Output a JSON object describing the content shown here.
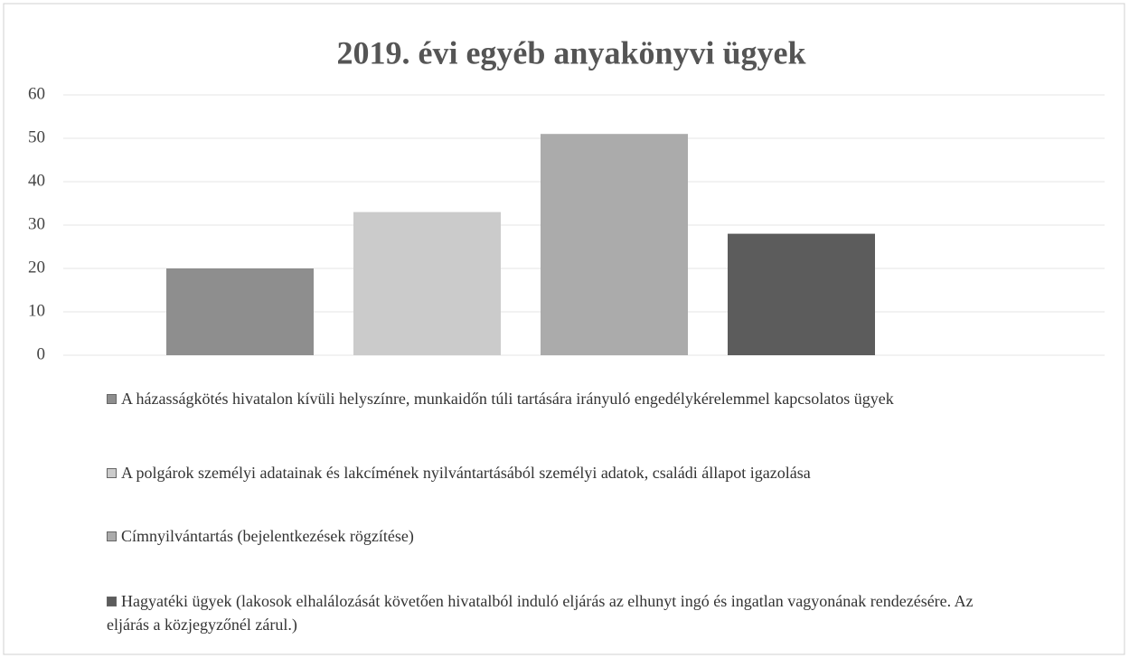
{
  "chart_data": {
    "type": "bar",
    "title": "2019. évi egyéb anyakönyvi ügyek",
    "categories": [
      null
    ],
    "series": [
      {
        "name": "A házasságkötés hivatalon kívüli helyszínre, munkaidőn túli tartására irányuló engedélykérelemmel kapcsolatos ügyek",
        "color": "#8e8e8e",
        "values": [
          20
        ]
      },
      {
        "name": "A polgárok személyi adatainak és lakcímének nyilvántartásából személyi adatok, családi állapot igazolása",
        "color": "#cbcbcb",
        "values": [
          33
        ]
      },
      {
        "name": "Címnyilvántartás (bejelentkezések rögzítése)",
        "color": "#ababab",
        "values": [
          51
        ]
      },
      {
        "name": "Hagyatéki ügyek (lakosok elhalálozását követően hivatalból induló eljárás az elhunyt ingó és ingatlan vagyonának rendezésére. Az eljárás a közjegyzőnél zárul.)",
        "color": "#5c5c5c",
        "values": [
          28
        ]
      }
    ],
    "ylim": [
      0,
      60
    ],
    "yticks": [
      0,
      10,
      20,
      30,
      40,
      50,
      60
    ],
    "grid": true,
    "legend": "bottom"
  }
}
